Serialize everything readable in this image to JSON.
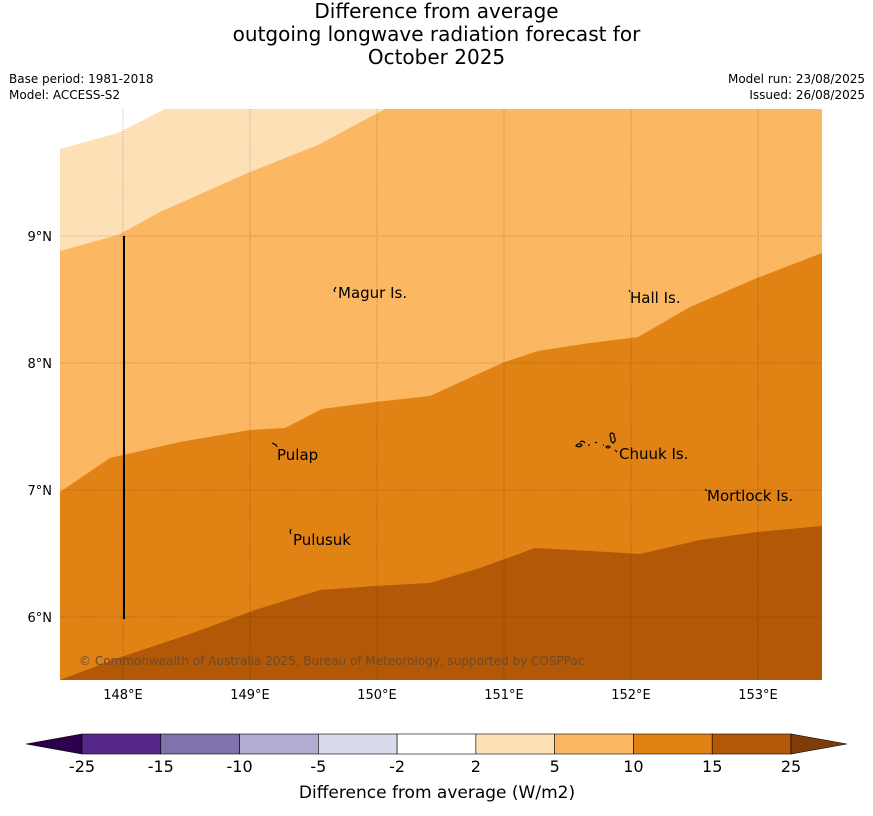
{
  "title": {
    "line1": "Difference from average",
    "line2": "outgoing longwave radiation forecast for",
    "line3": "October 2025"
  },
  "meta": {
    "base_period": "Base period: 1981-2018",
    "model": "Model: ACCESS-S2",
    "model_run": "Model run: 23/08/2025",
    "issued": "Issued: 26/08/2025"
  },
  "map": {
    "lon_ticks": [
      "148°E",
      "149°E",
      "150°E",
      "151°E",
      "152°E",
      "153°E"
    ],
    "lat_ticks": [
      "9°N",
      "8°N",
      "7°N",
      "6°N"
    ],
    "places": [
      {
        "name": "Magur Is."
      },
      {
        "name": "Hall Is."
      },
      {
        "name": "Pulap"
      },
      {
        "name": "Chuuk Is."
      },
      {
        "name": "Mortlock Is."
      },
      {
        "name": "Pulusuk"
      }
    ],
    "copyright": "© Commonwealth of Australia 2025, Bureau of Meteorology, supported by COSPPac",
    "colors": {
      "range_2_5": "#fde0b6",
      "range_5_10": "#fbb762",
      "range_10_15": "#e08214",
      "range_15_25": "#b35806"
    }
  },
  "colorbar": {
    "title": "Difference from average (W/m2)",
    "ticks": [
      "-25",
      "-15",
      "-10",
      "-5",
      "-2",
      "2",
      "5",
      "10",
      "15",
      "25"
    ],
    "colors": [
      "#2d004b",
      "#542788",
      "#8073ac",
      "#b2abd2",
      "#d8daeb",
      "#ffffff",
      "#fde0b6",
      "#fbb762",
      "#e08214",
      "#b35806",
      "#7f3b08"
    ]
  }
}
